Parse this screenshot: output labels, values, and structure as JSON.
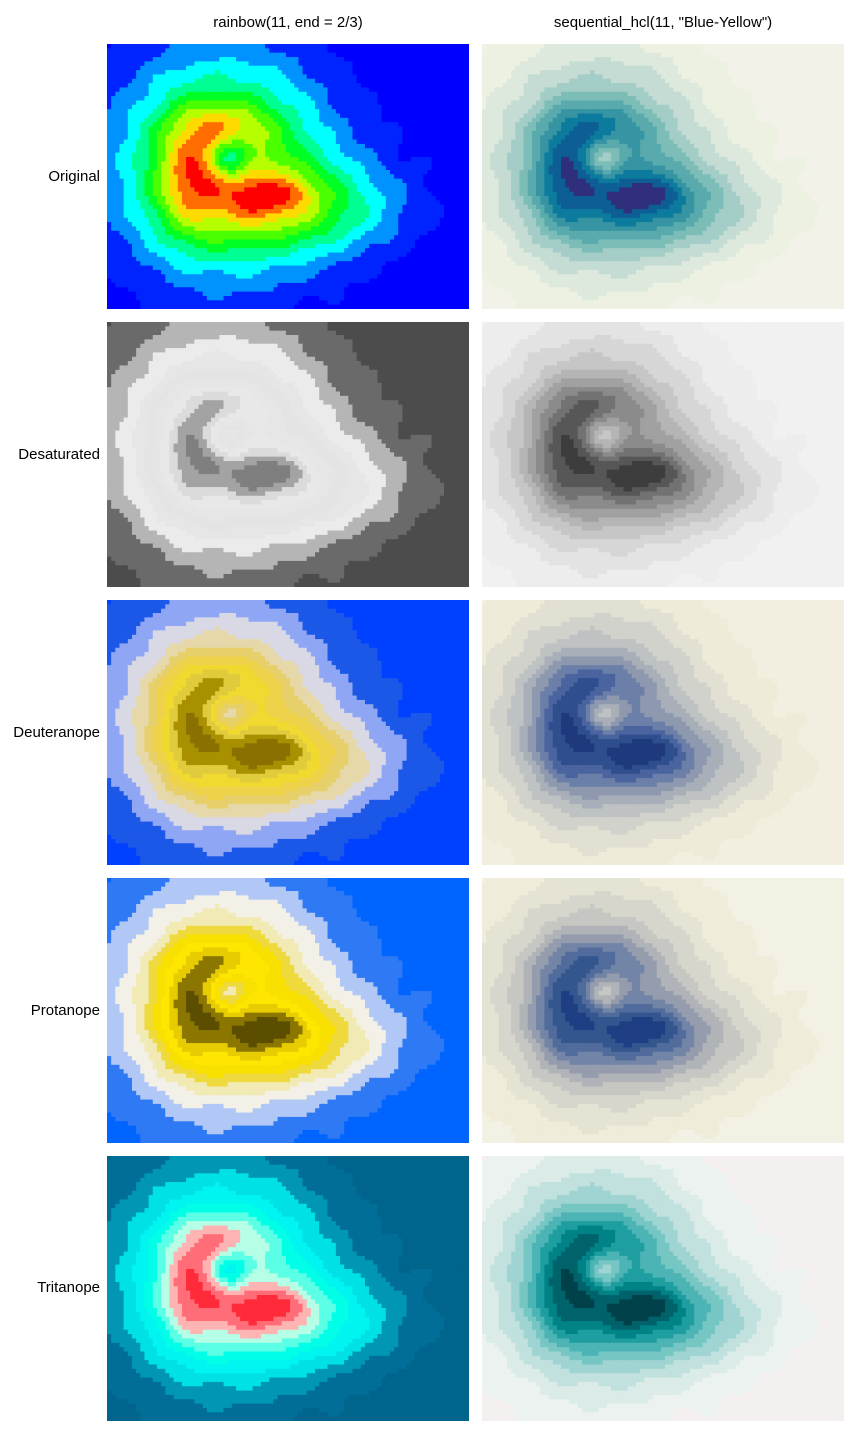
{
  "chart_data": {
    "type": "heatmap",
    "columns": [
      {
        "title": "rainbow(11, end = 2/3)",
        "palette": [
          "#FF0000",
          "#FF6D00",
          "#FFDA00",
          "#B6FF00",
          "#49FF00",
          "#00FF24",
          "#00FF92",
          "#00FFFF",
          "#0092FF",
          "#0024FF",
          "#0000FF"
        ]
      },
      {
        "title": "sequential_hcl(11, \"Blue-Yellow\")",
        "palette": [
          "#2F2F7C",
          "#0D5E95",
          "#0C7B9D",
          "#3694A3",
          "#58AAAC",
          "#7DBDB8",
          "#A3CDC6",
          "#C4DCD3",
          "#DDE9DC",
          "#EDF1E2",
          "#F2F2E8"
        ]
      }
    ],
    "rows": [
      {
        "label": "Original"
      },
      {
        "label": "Desaturated"
      },
      {
        "label": "Deuteranope"
      },
      {
        "label": "Protanope"
      },
      {
        "label": "Tritanope"
      }
    ],
    "transformed_palettes": {
      "rainbow": {
        "Original": [
          "#FF0000",
          "#FF6D00",
          "#FFDA00",
          "#B6FF00",
          "#49FF00",
          "#00FF24",
          "#00FF92",
          "#00FFFF",
          "#0092FF",
          "#0024FF",
          "#0000FF"
        ],
        "Desaturated": [
          "#7F7F7F",
          "#A3A3A3",
          "#DBDBDB",
          "#E8E8E8",
          "#E6E6E6",
          "#E4E4E4",
          "#E6E6E6",
          "#EBEBEB",
          "#B5B5B5",
          "#6A6A6A",
          "#4C4C4C"
        ],
        "Deuteranope": [
          "#8A7000",
          "#A89000",
          "#E0CB3C",
          "#F1DA30",
          "#EDD24A",
          "#E7D06A",
          "#E6D8A8",
          "#D9D9E6",
          "#8FA6F4",
          "#1C58E8",
          "#0040FF"
        ],
        "Protanope": [
          "#5C4E00",
          "#8B7600",
          "#E6CC00",
          "#FFE600",
          "#F8E000",
          "#EEDA3C",
          "#F2EAB4",
          "#F3F0E8",
          "#B1C8F6",
          "#2F7AF4",
          "#0064FF"
        ],
        "Tritanope": [
          "#FF2A3A",
          "#FF6E78",
          "#FFB4B4",
          "#B4FFE6",
          "#5AFFE6",
          "#00FFE6",
          "#00F5F0",
          "#00E1E6",
          "#0096B4",
          "#006E96",
          "#00648C"
        ]
      },
      "blue_yellow": {
        "Original": [
          "#2F2F7C",
          "#0D5E95",
          "#0C7B9D",
          "#3694A3",
          "#58AAAC",
          "#7DBDB8",
          "#A3CDC6",
          "#C4DCD3",
          "#DDE9DC",
          "#EDF1E2",
          "#F2F2E8"
        ],
        "Desaturated": [
          "#3D3D3D",
          "#575757",
          "#727272",
          "#8B8B8B",
          "#A1A1A1",
          "#B5B5B5",
          "#C6C6C6",
          "#D6D6D6",
          "#E3E3E3",
          "#EDEDED",
          "#F1F1F1"
        ],
        "Deuteranope": [
          "#1F3A7C",
          "#2F4E8E",
          "#4A64A0",
          "#6B7FA8",
          "#8E98AE",
          "#A8AFB8",
          "#BFC2C2",
          "#D2D2CC",
          "#E2E0D2",
          "#EEEBD8",
          "#F2EFE0"
        ],
        "Protanope": [
          "#1F3E84",
          "#34568F",
          "#516C9C",
          "#7385A6",
          "#959CAD",
          "#B0B3B7",
          "#C6C7C2",
          "#D7D6CC",
          "#E5E3D3",
          "#EFECD9",
          "#F3F0E4"
        ],
        "Tritanope": [
          "#00414A",
          "#00636B",
          "#008387",
          "#1E9EA0",
          "#4CB4B4",
          "#76C6C4",
          "#9FD4D2",
          "#C0E1DE",
          "#DBEBE8",
          "#ECF2F0",
          "#F4F0F0"
        ]
      }
    }
  }
}
